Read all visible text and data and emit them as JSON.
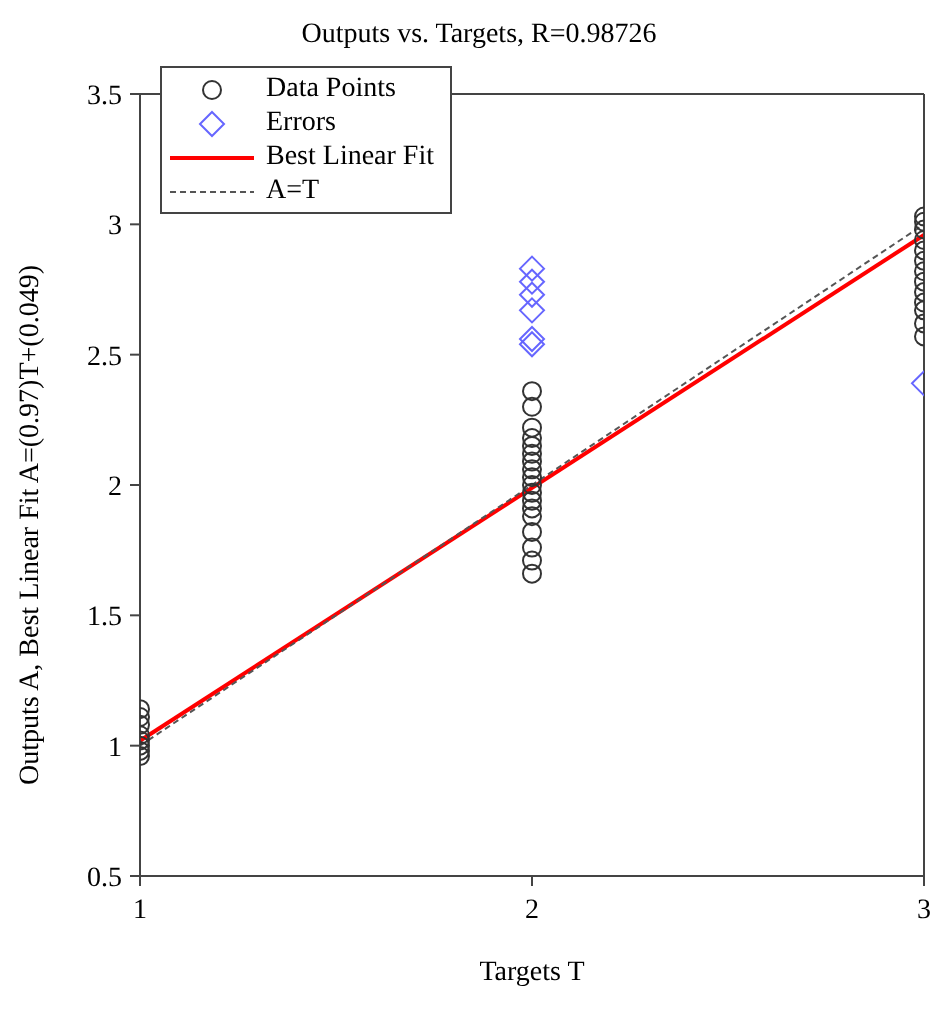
{
  "chart_data": {
    "type": "scatter",
    "title": "Outputs vs. Targets, R=0.98726",
    "xlabel": "Targets T",
    "ylabel": "Outputs A, Best Linear Fit A=(0.97)T+(0.049)",
    "xlim": [
      1,
      3
    ],
    "xticks": [
      1,
      2,
      3
    ],
    "ylim": [
      0.5,
      3.5
    ],
    "yticks": [
      0.5,
      1,
      1.5,
      2,
      2.5,
      3,
      3.5
    ],
    "legend": "top left",
    "series": [
      {
        "name": "Data Points",
        "type": "scatter",
        "marker": "circle",
        "color": "#333333",
        "x": [
          1,
          1,
          1,
          1,
          1,
          1,
          1,
          1,
          2,
          2,
          2,
          2,
          2,
          2,
          2,
          2,
          2,
          2,
          2,
          2,
          2,
          2,
          2,
          2,
          2,
          2,
          3,
          3,
          3,
          3,
          3,
          3,
          3,
          3,
          3,
          3,
          3,
          3,
          3
        ],
        "values": [
          0.96,
          0.98,
          1.0,
          1.02,
          1.04,
          1.08,
          1.11,
          1.14,
          1.66,
          1.71,
          1.76,
          1.82,
          1.88,
          1.91,
          1.94,
          1.97,
          2.0,
          2.03,
          2.06,
          2.09,
          2.12,
          2.15,
          2.18,
          2.22,
          2.3,
          2.36,
          2.57,
          2.62,
          2.67,
          2.7,
          2.74,
          2.78,
          2.82,
          2.86,
          2.9,
          2.94,
          2.98,
          3.01,
          3.03
        ]
      },
      {
        "name": "Errors",
        "type": "scatter",
        "marker": "diamond",
        "color": "#6666ff",
        "x": [
          2,
          2,
          2,
          2,
          2,
          2,
          3
        ],
        "values": [
          2.54,
          2.56,
          2.67,
          2.73,
          2.78,
          2.83,
          2.39
        ]
      },
      {
        "name": "Best Linear Fit",
        "type": "line",
        "marker": "none",
        "line_style": "solid",
        "color": "#ff0000",
        "x": [
          1,
          3
        ],
        "values": [
          1.019,
          2.959
        ]
      },
      {
        "name": "A=T",
        "type": "line",
        "marker": "none",
        "line_style": "dashed",
        "color": "#555555",
        "x": [
          1,
          3
        ],
        "values": [
          1,
          3
        ]
      }
    ]
  }
}
